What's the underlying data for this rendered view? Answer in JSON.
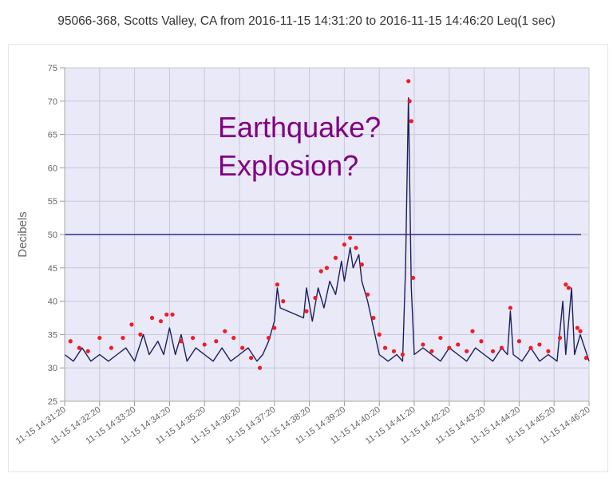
{
  "chart_data": {
    "type": "scatter",
    "title": "95066-368, Scotts Valley, CA from 2016-11-15 14:31:20 to 2016-11-15 14:46:20 Leq(1 sec)",
    "ylabel": "Decibels",
    "xlabel": "",
    "ylim": [
      25,
      75
    ],
    "yticks": [
      25,
      30,
      35,
      40,
      45,
      50,
      55,
      60,
      65,
      70,
      75
    ],
    "xlim": [
      "14:31:20",
      "14:46:20"
    ],
    "xtick_labels": [
      "11-15 14:31:20",
      "11-15 14:32:20",
      "11-15 14:33:20",
      "11-15 14:34:20",
      "11-15 14:35:20",
      "11-15 14:36:20",
      "11-15 14:37:20",
      "11-15 14:38:20",
      "11-15 14:39:20",
      "11-15 14:40:20",
      "11-15 14:41:20",
      "11-15 14:42:20",
      "11-15 14:43:20",
      "11-15 14:44:20",
      "11-15 14:45:20",
      "11-15 14:46:20"
    ],
    "grid": true,
    "threshold_line": 50,
    "annotation": [
      "Earthquake?",
      "Explosion?"
    ],
    "series": [
      {
        "values_line": [
          [
            "14:31:20",
            32
          ],
          [
            "14:31:35",
            31
          ],
          [
            "14:31:50",
            33
          ],
          [
            "14:32:05",
            31
          ],
          [
            "14:32:20",
            32
          ],
          [
            "14:32:35",
            31
          ],
          [
            "14:32:50",
            32
          ],
          [
            "14:33:05",
            33
          ],
          [
            "14:33:20",
            31
          ],
          [
            "14:33:35",
            35
          ],
          [
            "14:33:45",
            32
          ],
          [
            "14:34:00",
            34
          ],
          [
            "14:34:10",
            32
          ],
          [
            "14:34:20",
            36
          ],
          [
            "14:34:30",
            32
          ],
          [
            "14:34:40",
            35
          ],
          [
            "14:34:50",
            31
          ],
          [
            "14:35:05",
            33
          ],
          [
            "14:35:20",
            32
          ],
          [
            "14:35:35",
            31
          ],
          [
            "14:35:50",
            33
          ],
          [
            "14:36:05",
            31
          ],
          [
            "14:36:20",
            32
          ],
          [
            "14:36:35",
            33
          ],
          [
            "14:36:50",
            31
          ],
          [
            "14:37:00",
            32
          ],
          [
            "14:37:10",
            34
          ],
          [
            "14:37:20",
            37
          ],
          [
            "14:37:25",
            42
          ],
          [
            "14:37:30",
            39
          ],
          [
            "14:38:10",
            37.5
          ],
          [
            "14:38:15",
            42
          ],
          [
            "14:38:25",
            37
          ],
          [
            "14:38:35",
            42
          ],
          [
            "14:38:45",
            39
          ],
          [
            "14:38:55",
            43
          ],
          [
            "14:39:05",
            41
          ],
          [
            "14:39:15",
            46
          ],
          [
            "14:39:20",
            43
          ],
          [
            "14:39:30",
            48
          ],
          [
            "14:39:35",
            45
          ],
          [
            "14:39:45",
            47
          ],
          [
            "14:39:50",
            43
          ],
          [
            "14:40:00",
            40
          ],
          [
            "14:40:10",
            36
          ],
          [
            "14:40:20",
            32
          ],
          [
            "14:40:35",
            31
          ],
          [
            "14:40:50",
            32
          ],
          [
            "14:41:00",
            31
          ],
          [
            "14:41:05",
            45
          ],
          [
            "14:41:10",
            70.5
          ],
          [
            "14:41:15",
            42
          ],
          [
            "14:41:20",
            32
          ],
          [
            "14:41:35",
            33
          ],
          [
            "14:41:50",
            32
          ],
          [
            "14:42:05",
            31
          ],
          [
            "14:42:20",
            33
          ],
          [
            "14:42:35",
            32
          ],
          [
            "14:42:50",
            31
          ],
          [
            "14:43:05",
            33
          ],
          [
            "14:43:20",
            32
          ],
          [
            "14:43:35",
            31
          ],
          [
            "14:43:50",
            33
          ],
          [
            "14:44:00",
            32
          ],
          [
            "14:44:05",
            38.5
          ],
          [
            "14:44:10",
            32
          ],
          [
            "14:44:25",
            31
          ],
          [
            "14:44:40",
            33
          ],
          [
            "14:44:55",
            31
          ],
          [
            "14:45:10",
            32
          ],
          [
            "14:45:25",
            31
          ],
          [
            "14:45:35",
            40
          ],
          [
            "14:45:40",
            32
          ],
          [
            "14:45:50",
            42
          ],
          [
            "14:45:55",
            32
          ],
          [
            "14:46:05",
            35
          ],
          [
            "14:46:20",
            31
          ]
        ],
        "values_peaks": [
          [
            "14:31:30",
            34
          ],
          [
            "14:31:45",
            33
          ],
          [
            "14:32:00",
            32.5
          ],
          [
            "14:32:20",
            34.5
          ],
          [
            "14:32:40",
            33
          ],
          [
            "14:33:00",
            34.5
          ],
          [
            "14:33:15",
            36.5
          ],
          [
            "14:33:30",
            35
          ],
          [
            "14:33:50",
            37.5
          ],
          [
            "14:34:05",
            37
          ],
          [
            "14:34:15",
            38
          ],
          [
            "14:34:25",
            38
          ],
          [
            "14:34:40",
            34
          ],
          [
            "14:35:00",
            34.5
          ],
          [
            "14:35:20",
            33.5
          ],
          [
            "14:35:40",
            34
          ],
          [
            "14:35:55",
            35.5
          ],
          [
            "14:36:10",
            34.5
          ],
          [
            "14:36:25",
            33
          ],
          [
            "14:36:40",
            31.5
          ],
          [
            "14:36:55",
            30
          ],
          [
            "14:37:10",
            34.5
          ],
          [
            "14:37:20",
            36
          ],
          [
            "14:37:25",
            42.5
          ],
          [
            "14:37:35",
            40
          ],
          [
            "14:38:15",
            38.5
          ],
          [
            "14:38:30",
            40.5
          ],
          [
            "14:38:40",
            44.5
          ],
          [
            "14:38:50",
            45
          ],
          [
            "14:39:05",
            46.5
          ],
          [
            "14:39:20",
            48.5
          ],
          [
            "14:39:30",
            49.5
          ],
          [
            "14:39:40",
            48
          ],
          [
            "14:39:50",
            45.5
          ],
          [
            "14:40:00",
            41
          ],
          [
            "14:40:10",
            37.5
          ],
          [
            "14:40:20",
            35
          ],
          [
            "14:40:30",
            33
          ],
          [
            "14:40:45",
            32.5
          ],
          [
            "14:41:00",
            32
          ],
          [
            "14:41:10",
            73
          ],
          [
            "14:41:12",
            70
          ],
          [
            "14:41:15",
            67
          ],
          [
            "14:41:18",
            43.5
          ],
          [
            "14:41:35",
            33.5
          ],
          [
            "14:41:50",
            32.5
          ],
          [
            "14:42:05",
            34.5
          ],
          [
            "14:42:20",
            33
          ],
          [
            "14:42:35",
            33.5
          ],
          [
            "14:42:50",
            32.5
          ],
          [
            "14:43:00",
            35.5
          ],
          [
            "14:43:15",
            34
          ],
          [
            "14:43:35",
            32.5
          ],
          [
            "14:43:50",
            33
          ],
          [
            "14:44:05",
            39
          ],
          [
            "14:44:20",
            34
          ],
          [
            "14:44:40",
            33
          ],
          [
            "14:44:55",
            33.5
          ],
          [
            "14:45:10",
            32.5
          ],
          [
            "14:45:30",
            34.5
          ],
          [
            "14:45:40",
            42.5
          ],
          [
            "14:45:45",
            42
          ],
          [
            "14:46:00",
            36
          ],
          [
            "14:46:05",
            35.5
          ],
          [
            "14:46:15",
            31.5
          ]
        ]
      }
    ],
    "colors": {
      "plot_bg": "#e9e9f7",
      "grid": "#c7c7de",
      "line": "#1b1f5c",
      "threshold": "#2b2e88",
      "markers": "#ee1c25",
      "annotation": "#800080",
      "tick_text": "#666666",
      "label_text": "#666666"
    }
  }
}
